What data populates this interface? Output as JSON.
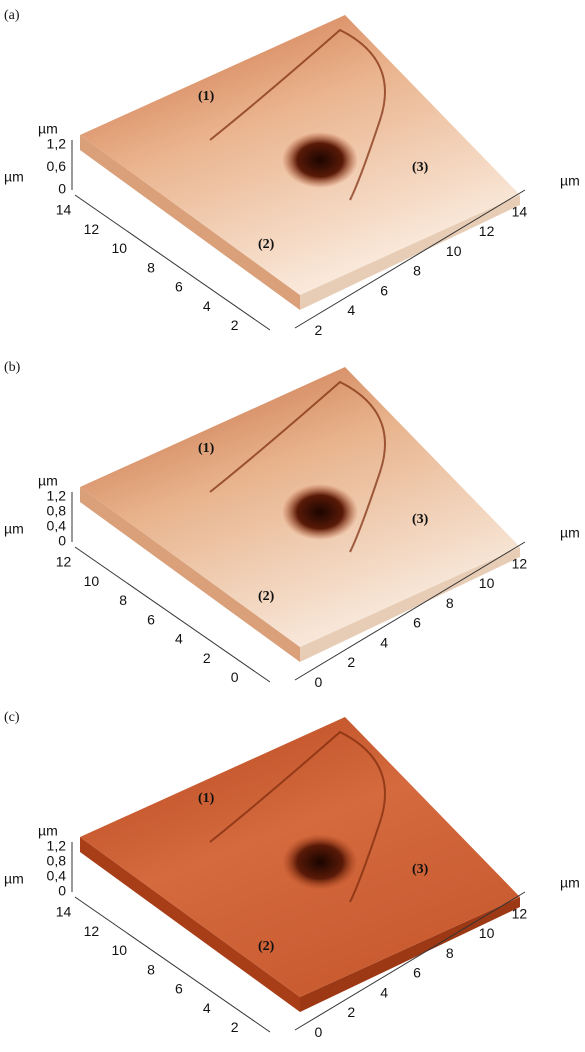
{
  "panels": [
    {
      "label": "(a)",
      "regions": [
        "(1)",
        "(2)",
        "(3)"
      ],
      "z_unit": "µm",
      "z_ticks": [
        "1,2",
        "0,6",
        "0"
      ],
      "left_unit": "µm",
      "left_ticks": [
        "14",
        "12",
        "10",
        "8",
        "6",
        "4",
        "2"
      ],
      "right_unit": "µm",
      "right_ticks": [
        "2",
        "4",
        "6",
        "8",
        "10",
        "12",
        "14"
      ]
    },
    {
      "label": "(b)",
      "regions": [
        "(1)",
        "(2)",
        "(3)"
      ],
      "z_unit": "µm",
      "z_ticks": [
        "1,2",
        "0,8",
        "0,4",
        "0"
      ],
      "left_unit": "µm",
      "left_ticks": [
        "12",
        "10",
        "8",
        "6",
        "4",
        "2",
        "0"
      ],
      "right_unit": "µm",
      "right_ticks": [
        "0",
        "2",
        "4",
        "6",
        "8",
        "10",
        "12"
      ]
    },
    {
      "label": "(c)",
      "regions": [
        "(1)",
        "(2)",
        "(3)"
      ],
      "z_unit": "µm",
      "z_ticks": [
        "1,2",
        "0,8",
        "0,4",
        "0"
      ],
      "left_unit": "µm",
      "left_ticks": [
        "14",
        "12",
        "10",
        "8",
        "6",
        "4",
        "2"
      ],
      "right_unit": "µm",
      "right_ticks": [
        "0",
        "2",
        "4",
        "6",
        "8",
        "10",
        "12"
      ]
    }
  ]
}
